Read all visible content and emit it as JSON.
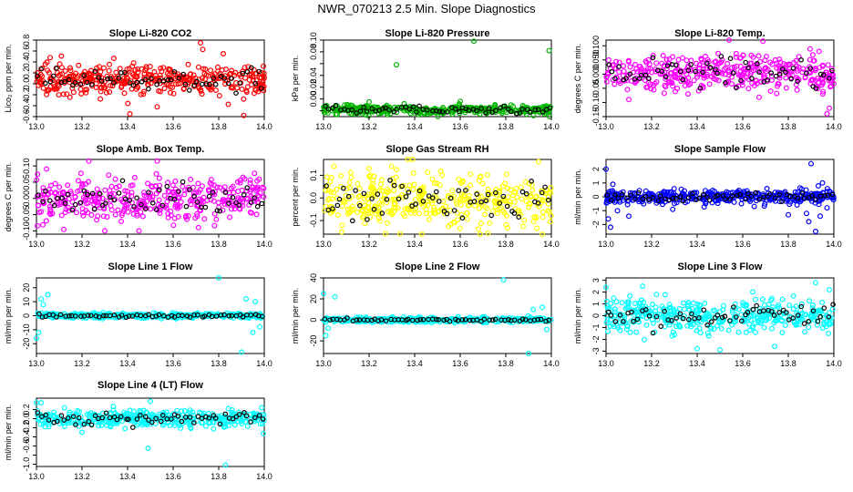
{
  "title": "NWR_070213  2.5 Min. Slope Diagnostics",
  "chart_data": [
    {
      "type": "scatter",
      "title": "Slope Li-820 CO2",
      "ylabel": "Lico₂ ppm per min.",
      "color": "#ff0000",
      "xlim": [
        13.0,
        14.0
      ],
      "ylim": [
        -0.6,
        0.8
      ],
      "xticks": [
        13.0,
        13.2,
        13.4,
        13.6,
        13.8,
        14.0
      ],
      "yticks": [
        -0.6,
        -0.4,
        -0.2,
        0.0,
        0.2,
        0.4,
        0.6,
        0.8
      ],
      "ytick_labels": [
        "-0.6",
        "-0.4",
        "-0.2",
        "0.0",
        "0.2",
        "0.4",
        "0.6",
        "0.8"
      ],
      "noise": {
        "center": 0.08,
        "spread": 0.13,
        "count": 380,
        "black_spread": 0.09,
        "black_count": 60
      },
      "outliers": [
        [
          13.41,
          -0.55
        ],
        [
          13.53,
          -0.42
        ],
        [
          13.72,
          0.75
        ],
        [
          13.73,
          0.63
        ],
        [
          13.91,
          -0.58
        ],
        [
          13.82,
          0.55
        ],
        [
          13.06,
          0.48
        ]
      ]
    },
    {
      "type": "scatter",
      "title": "Slope Li-820 Pressure",
      "ylabel": "kPa per min.",
      "color": "#00b400",
      "xlim": [
        13.0,
        14.0
      ],
      "ylim": [
        -0.03,
        0.1
      ],
      "xticks": [
        13.0,
        13.2,
        13.4,
        13.6,
        13.8,
        14.0
      ],
      "yticks": [
        -0.02,
        0.0,
        0.02,
        0.04,
        0.06,
        0.08,
        0.1
      ],
      "ytick_labels": [
        "",
        "0.00",
        "0.02",
        "0.04",
        "",
        "0.08",
        "0.10"
      ],
      "noise": {
        "center": -0.018,
        "spread": 0.004,
        "count": 380,
        "black_spread": 0.003,
        "black_count": 60
      },
      "outliers": [
        [
          13.32,
          0.058
        ],
        [
          13.66,
          0.098
        ],
        [
          13.99,
          0.082
        ],
        [
          13.2,
          -0.005
        ],
        [
          13.6,
          -0.004
        ]
      ]
    },
    {
      "type": "scatter",
      "title": "Slope Li-820 Temp.",
      "ylabel": "degrees C per min.",
      "color": "#ff00ff",
      "xlim": [
        13.0,
        14.0
      ],
      "ylim": [
        -0.15,
        0.12
      ],
      "xticks": [
        13.0,
        13.2,
        13.4,
        13.6,
        13.8,
        14.0
      ],
      "yticks": [
        -0.15,
        -0.1,
        -0.05,
        0.0,
        0.05,
        0.1
      ],
      "ytick_labels": [
        "-0.15",
        "-0.10",
        "-0.05",
        "0.000",
        "0.050",
        "0.100"
      ],
      "noise": {
        "center": 0.005,
        "spread": 0.032,
        "count": 380,
        "black_spread": 0.025,
        "black_count": 60
      },
      "outliers": [
        [
          13.54,
          0.12
        ],
        [
          13.97,
          -0.14
        ],
        [
          13.98,
          -0.12
        ],
        [
          13.1,
          -0.09
        ],
        [
          13.36,
          -0.07
        ]
      ]
    },
    {
      "type": "scatter",
      "title": "Slope Amb. Box Temp.",
      "ylabel": "degrees C per min.",
      "color": "#ff00ff",
      "xlim": [
        13.0,
        14.0
      ],
      "ylim": [
        -0.11,
        0.12
      ],
      "xticks": [
        13.0,
        13.2,
        13.4,
        13.6,
        13.8,
        14.0
      ],
      "yticks": [
        -0.1,
        -0.05,
        0.0,
        0.05,
        0.1
      ],
      "ytick_labels": [
        "-0.10",
        "-0.05",
        "0.00",
        "0.05",
        "0.10"
      ],
      "noise": {
        "center": 0.0,
        "spread": 0.035,
        "count": 380,
        "black_spread": 0.025,
        "black_count": 60
      },
      "outliers": [
        [
          13.23,
          0.115
        ],
        [
          13.53,
          0.115
        ],
        [
          13.3,
          -0.1
        ],
        [
          13.45,
          -0.1
        ],
        [
          13.12,
          -0.095
        ]
      ]
    },
    {
      "type": "scatter",
      "title": "Slope Gas Stream RH",
      "ylabel": "percent per min.",
      "color": "#ffff00",
      "xlim": [
        13.0,
        14.0
      ],
      "ylim": [
        -0.16,
        0.17
      ],
      "xticks": [
        13.0,
        13.2,
        13.4,
        13.6,
        13.8,
        14.0
      ],
      "yticks": [
        -0.1,
        0.0,
        0.1
      ],
      "ytick_labels": [
        "-0.1",
        "0.0",
        "0.1"
      ],
      "noise": {
        "center": -0.01,
        "spread": 0.055,
        "count": 380,
        "black_spread": 0.04,
        "black_count": 60
      },
      "outliers": [
        [
          13.08,
          -0.15
        ],
        [
          13.96,
          -0.16
        ],
        [
          13.2,
          0.13
        ],
        [
          13.32,
          0.125
        ]
      ]
    },
    {
      "type": "scatter",
      "title": "Slope Sample Flow",
      "ylabel": "ml/min per min.",
      "color": "#0000ff",
      "xlim": [
        13.0,
        14.0
      ],
      "ylim": [
        -2.7,
        2.7
      ],
      "xticks": [
        13.0,
        13.2,
        13.4,
        13.6,
        13.8,
        14.0
      ],
      "yticks": [
        -2,
        -1,
        0,
        1,
        2
      ],
      "ytick_labels": [
        "-2",
        "-1",
        "0",
        "1",
        "2"
      ],
      "noise": {
        "center": 0.0,
        "spread": 0.25,
        "count": 380,
        "black_spread": 0.15,
        "black_count": 60
      },
      "outliers": [
        [
          13.0,
          2.0
        ],
        [
          13.01,
          -1.6
        ],
        [
          13.02,
          -2.2
        ],
        [
          13.03,
          0.9
        ],
        [
          13.05,
          -1.0
        ],
        [
          13.1,
          -1.4
        ],
        [
          13.88,
          -1.2
        ],
        [
          13.89,
          -1.8
        ],
        [
          13.9,
          2.4
        ],
        [
          13.92,
          -2.5
        ],
        [
          13.94,
          -1.4
        ],
        [
          13.95,
          1.0
        ],
        [
          13.97,
          -0.8
        ],
        [
          13.8,
          -1.3
        ]
      ]
    },
    {
      "type": "scatter",
      "title": "Slope Line 1 Flow",
      "ylabel": "ml/min per min.",
      "color": "#00ffff",
      "xlim": [
        13.0,
        14.0
      ],
      "ylim": [
        -27,
        27
      ],
      "xticks": [
        13.0,
        13.2,
        13.4,
        13.6,
        13.8,
        14.0
      ],
      "yticks": [
        -20,
        -10,
        0,
        10,
        20
      ],
      "ytick_labels": [
        "-20",
        "-10",
        "0",
        "10",
        "20"
      ],
      "noise": {
        "center": 0.0,
        "spread": 0.9,
        "count": 380,
        "black_spread": 0.5,
        "black_count": 60
      },
      "outliers": [
        [
          13.0,
          -16
        ],
        [
          13.01,
          -12
        ],
        [
          13.02,
          12
        ],
        [
          13.03,
          8
        ],
        [
          13.05,
          15
        ],
        [
          13.8,
          27
        ],
        [
          13.9,
          -26
        ],
        [
          13.92,
          12
        ],
        [
          13.96,
          10
        ],
        [
          13.98,
          -8
        ],
        [
          13.95,
          -12
        ]
      ]
    },
    {
      "type": "scatter",
      "title": "Slope Line 2 Flow",
      "ylabel": "ml/min per min.",
      "color": "#00ffff",
      "xlim": [
        13.0,
        14.0
      ],
      "ylim": [
        -32,
        40
      ],
      "xticks": [
        13.0,
        13.2,
        13.4,
        13.6,
        13.8,
        14.0
      ],
      "yticks": [
        -20,
        0,
        20,
        40
      ],
      "ytick_labels": [
        "-20",
        "0",
        "20",
        "40"
      ],
      "noise": {
        "center": 0.0,
        "spread": 1.2,
        "count": 380,
        "black_spread": 0.6,
        "black_count": 60
      },
      "outliers": [
        [
          13.0,
          25
        ],
        [
          13.01,
          -15
        ],
        [
          13.02,
          -8
        ],
        [
          13.05,
          22
        ],
        [
          13.79,
          38
        ],
        [
          13.9,
          -32
        ],
        [
          13.92,
          10
        ],
        [
          13.96,
          12
        ],
        [
          13.98,
          -9
        ]
      ]
    },
    {
      "type": "scatter",
      "title": "Slope Line 3 Flow",
      "ylabel": "ml/min per min.",
      "color": "#00ffff",
      "xlim": [
        13.0,
        14.0
      ],
      "ylim": [
        -3.2,
        3.2
      ],
      "xticks": [
        13.0,
        13.2,
        13.4,
        13.6,
        13.8,
        14.0
      ],
      "yticks": [
        -3,
        -2,
        -1,
        0,
        1,
        2,
        3
      ],
      "ytick_labels": [
        "-3",
        "-2",
        "-1",
        "0",
        "1",
        "2",
        "3"
      ],
      "noise": {
        "center": 0.0,
        "spread": 0.7,
        "count": 380,
        "black_spread": 0.45,
        "black_count": 60
      },
      "outliers": [
        [
          13.4,
          -2.8
        ],
        [
          13.5,
          -2.9
        ],
        [
          13.74,
          -2.6
        ],
        [
          13.92,
          2.8
        ],
        [
          13.98,
          2.2
        ],
        [
          13.16,
          2.5
        ],
        [
          13.0,
          2.4
        ]
      ]
    },
    {
      "type": "scatter",
      "title": "Slope Line 4 (LT) Flow",
      "ylabel": "ml/min per min.",
      "color": "#00ffff",
      "xlim": [
        13.0,
        14.0
      ],
      "ylim": [
        -1.05,
        0.45
      ],
      "xticks": [
        13.0,
        13.2,
        13.4,
        13.6,
        13.8,
        14.0
      ],
      "yticks": [
        -1.0,
        -0.8,
        -0.6,
        -0.4,
        -0.2,
        0.0,
        0.2
      ],
      "ytick_labels": [
        "-1.0",
        "",
        "-0.6",
        "-0.4",
        "-0.2",
        "0.0",
        "0.2"
      ],
      "noise": {
        "center": 0.0,
        "spread": 0.09,
        "count": 380,
        "black_spread": 0.07,
        "black_count": 60
      },
      "outliers": [
        [
          13.0,
          0.35
        ],
        [
          13.02,
          0.35
        ],
        [
          13.5,
          0.38
        ],
        [
          13.49,
          -0.65
        ],
        [
          13.83,
          -1.02
        ],
        [
          13.2,
          -0.3
        ]
      ]
    }
  ]
}
